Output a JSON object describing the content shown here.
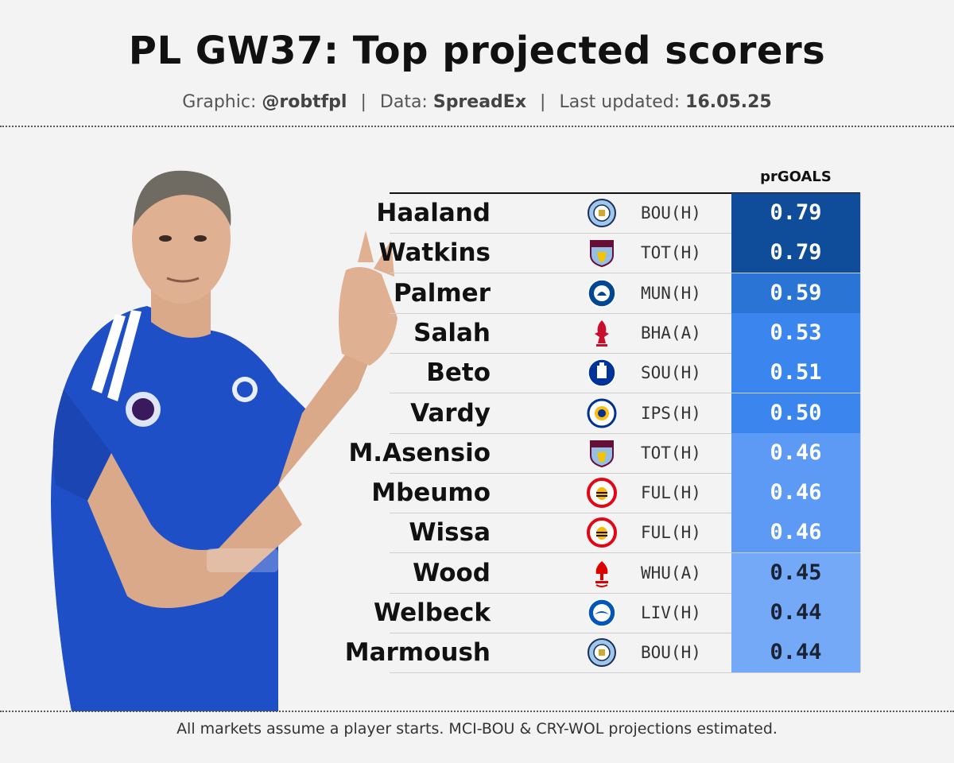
{
  "header": {
    "title": "PL GW37: Top projected scorers",
    "graphic_label": "Graphic:",
    "graphic_value": "@robtfpl",
    "data_label": "Data:",
    "data_value": "SpreadEx",
    "updated_label": "Last updated:",
    "updated_value": "16.05.25",
    "separator": "|"
  },
  "footnote": "All markets assume a player starts. MCI-BOU & CRY-WOL projections estimated.",
  "colors": {
    "darkest": "#0f4c9a",
    "dark": "#2a74d6",
    "mid": "#3b86ee",
    "light": "#5c9af5",
    "lightest": "#74a9f7",
    "kit_blue": "#1f4fc7"
  },
  "chart_data": {
    "type": "table",
    "column_header": "prGOALS",
    "rows": [
      {
        "player": "Haaland",
        "club_badge": "man-city-badge-icon",
        "fixture": "BOU(H)",
        "value": 0.79
      },
      {
        "player": "Watkins",
        "club_badge": "aston-villa-badge-icon",
        "fixture": "TOT(H)",
        "value": 0.79
      },
      {
        "player": "Palmer",
        "club_badge": "chelsea-badge-icon",
        "fixture": "MUN(H)",
        "value": 0.59
      },
      {
        "player": "Salah",
        "club_badge": "liverpool-badge-icon",
        "fixture": "BHA(A)",
        "value": 0.53
      },
      {
        "player": "Beto",
        "club_badge": "everton-badge-icon",
        "fixture": "SOU(H)",
        "value": 0.51
      },
      {
        "player": "Vardy",
        "club_badge": "leicester-badge-icon",
        "fixture": "IPS(H)",
        "value": 0.5
      },
      {
        "player": "M.Asensio",
        "club_badge": "aston-villa-badge-icon",
        "fixture": "TOT(H)",
        "value": 0.46
      },
      {
        "player": "Mbeumo",
        "club_badge": "brentford-badge-icon",
        "fixture": "FUL(H)",
        "value": 0.46
      },
      {
        "player": "Wissa",
        "club_badge": "brentford-badge-icon",
        "fixture": "FUL(H)",
        "value": 0.46
      },
      {
        "player": "Wood",
        "club_badge": "nottingham-forest-badge-icon",
        "fixture": "WHU(A)",
        "value": 0.45
      },
      {
        "player": "Welbeck",
        "club_badge": "brighton-badge-icon",
        "fixture": "LIV(H)",
        "value": 0.44
      },
      {
        "player": "Marmoush",
        "club_badge": "man-city-badge-icon",
        "fixture": "BOU(H)",
        "value": 0.44
      }
    ]
  }
}
